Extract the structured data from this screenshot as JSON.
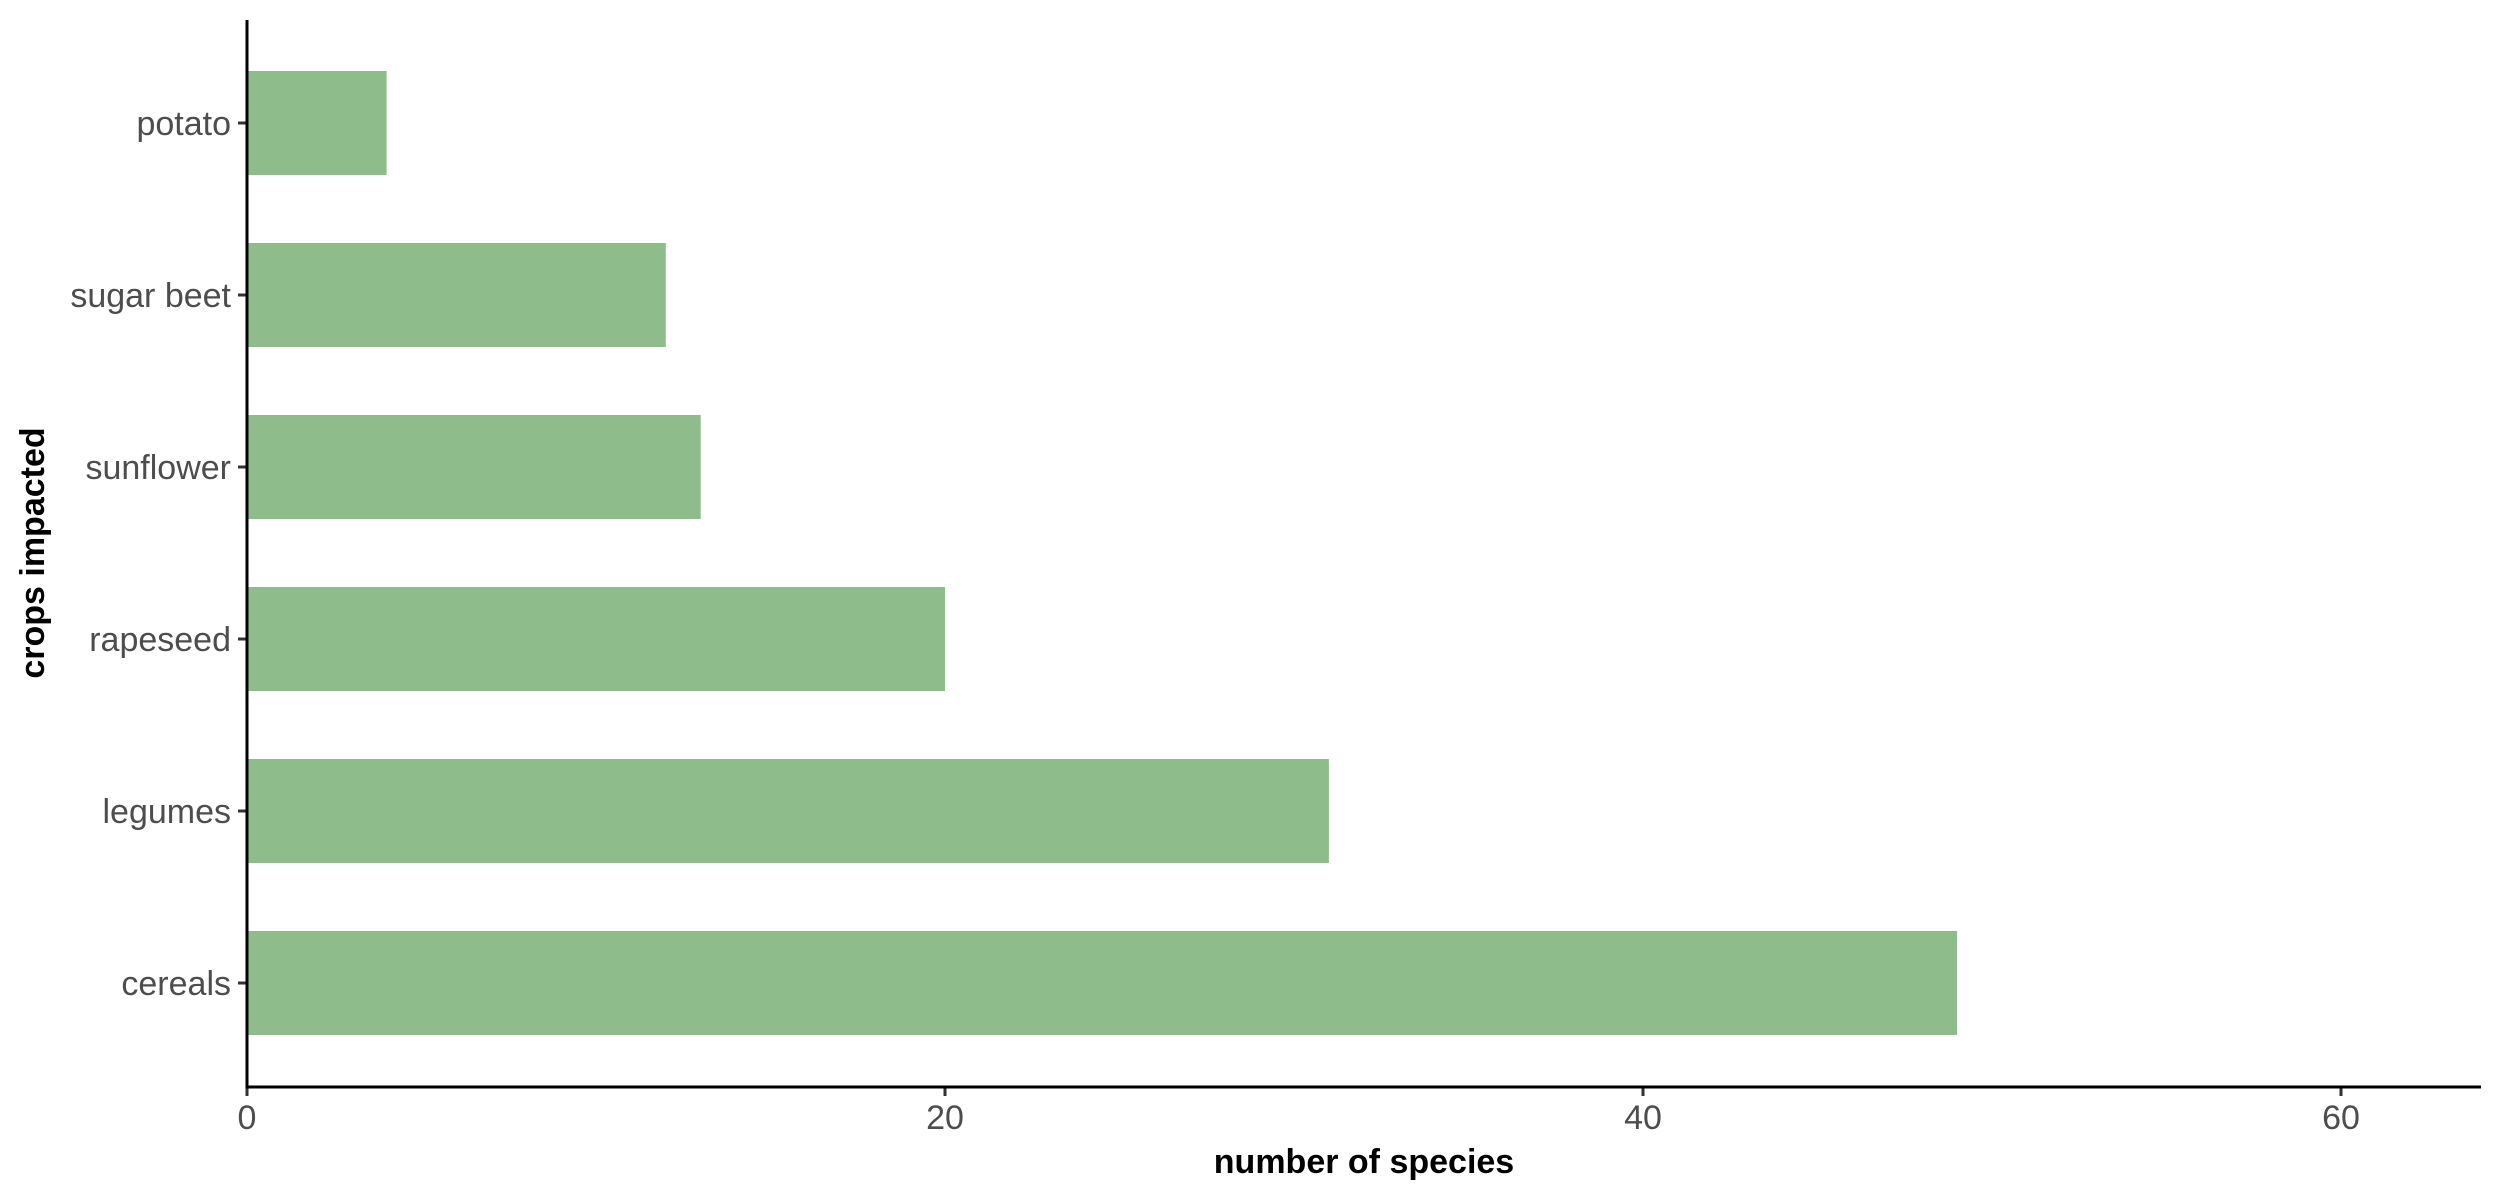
{
  "chart_data": {
    "type": "bar",
    "orientation": "horizontal",
    "categories": [
      "potato",
      "sugar beet",
      "sunflower",
      "rapeseed",
      "legumes",
      "cereals"
    ],
    "values": [
      4,
      12,
      13,
      20,
      31,
      49
    ],
    "xlabel": "number of species",
    "ylabel": "crops impacted",
    "xlim": [
      0,
      64
    ],
    "xticks": [
      0,
      20,
      40,
      60
    ],
    "xtick_labels": [
      "0",
      "20",
      "40",
      "60"
    ],
    "grid": false,
    "legend": "none",
    "bar_color": "#8fbc8b"
  }
}
